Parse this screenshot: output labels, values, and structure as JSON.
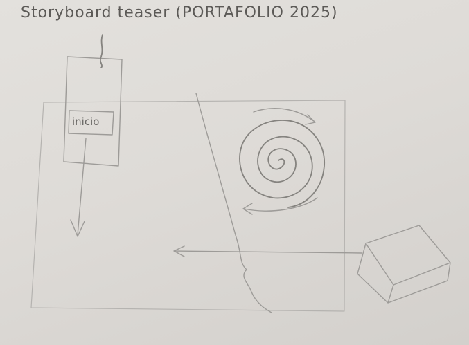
{
  "sketch": {
    "title": "Storyboard teaser (PORTAFOLIO 2025)",
    "tag_label": "inicio"
  }
}
